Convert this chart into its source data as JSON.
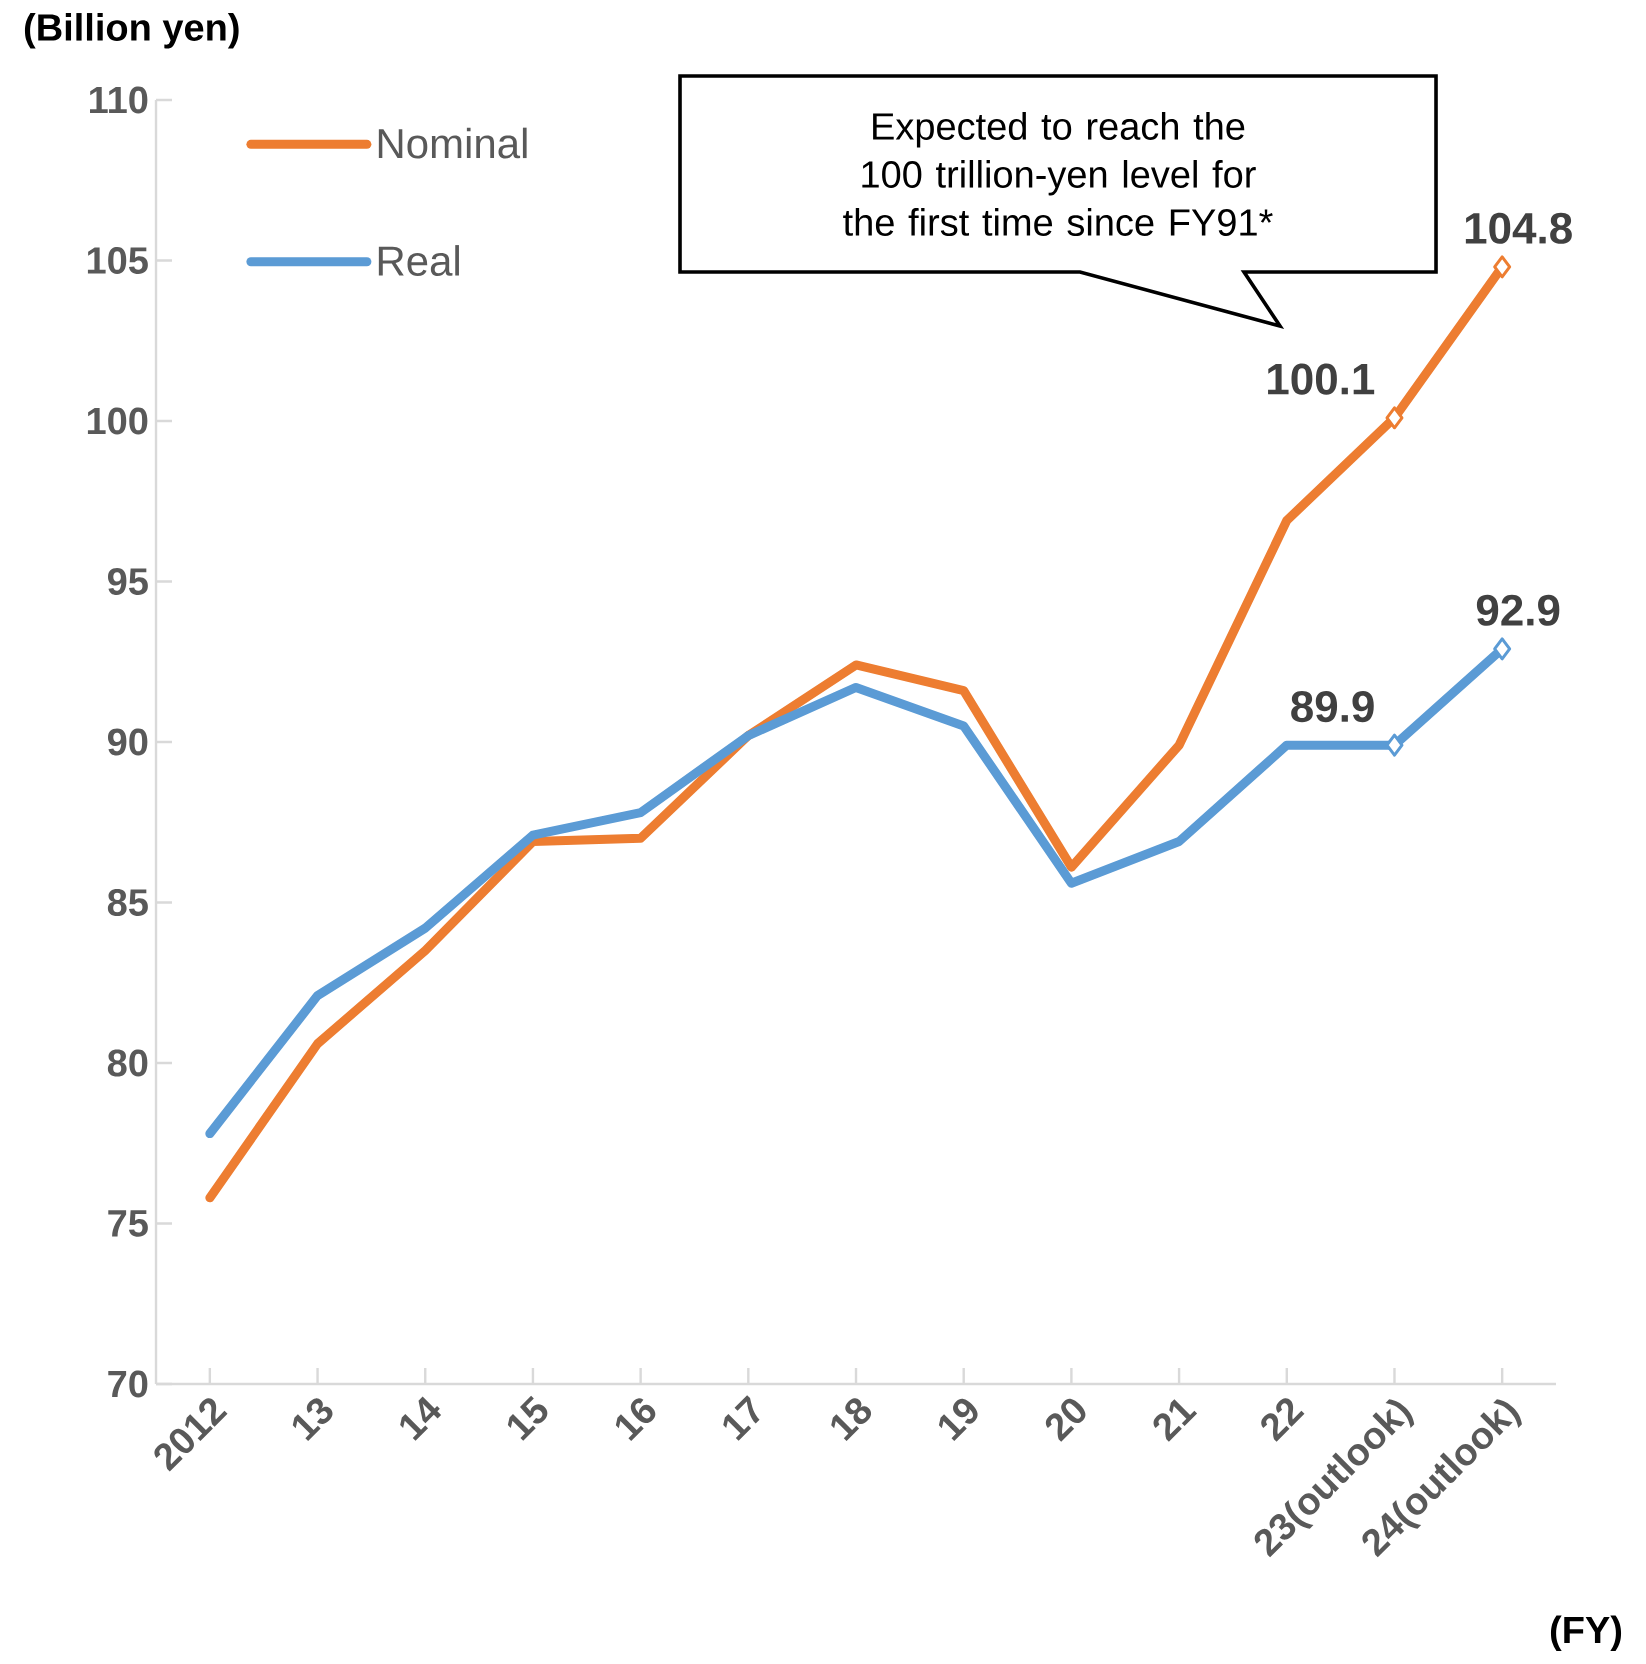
{
  "chart_data": {
    "type": "line",
    "ylabel": "(Billion yen)",
    "xlabel": "(FY)",
    "categories": [
      "2012",
      "13",
      "14",
      "15",
      "16",
      "17",
      "18",
      "19",
      "20",
      "21",
      "22",
      "23(outlook)",
      "24(outlook)"
    ],
    "series": [
      {
        "name": "Nominal",
        "color": "#ed7d31",
        "values": [
          75.8,
          80.6,
          83.5,
          86.9,
          87.0,
          90.2,
          92.4,
          91.6,
          86.1,
          89.9,
          96.9,
          100.1,
          104.8
        ],
        "value_labels": [
          null,
          null,
          null,
          null,
          null,
          null,
          null,
          null,
          null,
          null,
          null,
          "100.1",
          "104.8"
        ]
      },
      {
        "name": "Real",
        "color": "#5b9bd5",
        "values": [
          77.8,
          82.1,
          84.2,
          87.1,
          87.8,
          90.2,
          91.7,
          90.5,
          85.6,
          86.9,
          89.9,
          89.9,
          92.9
        ],
        "value_labels": [
          null,
          null,
          null,
          null,
          null,
          null,
          null,
          null,
          null,
          null,
          null,
          "89.9",
          "92.9"
        ]
      }
    ],
    "ylim": [
      70,
      110
    ],
    "yticks": [
      70,
      75,
      80,
      85,
      90,
      95,
      100,
      105,
      110
    ],
    "legend": "top left",
    "grid": false,
    "line_style": "solid",
    "annotations": [
      "Expected to reach the 100 trillion-yen level for the first time since FY91*"
    ]
  }
}
